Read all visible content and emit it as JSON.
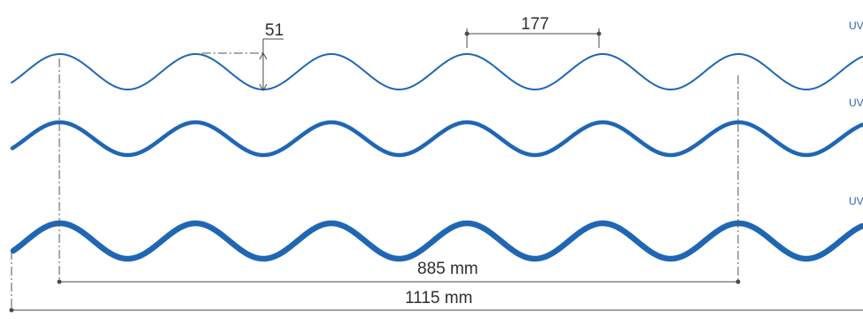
{
  "colors": {
    "profile": "#1f66b4",
    "dimension": "#4a4a4a",
    "uv_label": "#2a69b0"
  },
  "dimensions": {
    "height": "51",
    "pitch": "177",
    "cover_width": "885 mm",
    "total_width": "1115 mm"
  },
  "profiles": [
    {
      "label": "UV"
    },
    {
      "label": "UV"
    },
    {
      "label": "UV"
    }
  ]
}
